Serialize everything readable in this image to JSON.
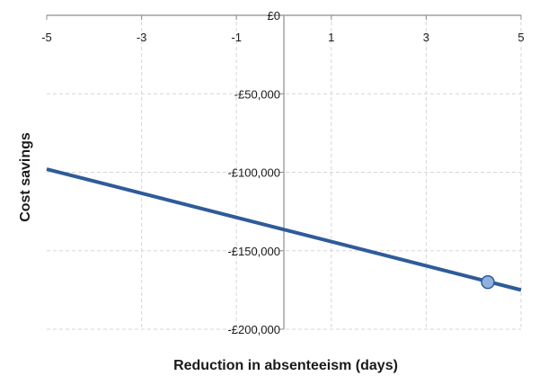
{
  "chart_data": {
    "type": "line",
    "xlabel": "Reduction in absenteeism (days)",
    "ylabel": "Cost savings",
    "xlim": [
      -5,
      5
    ],
    "ylim": [
      -200000,
      0
    ],
    "x_ticks": [
      -5,
      -3,
      -1,
      1,
      3,
      5
    ],
    "x_tick_labels": [
      "-5",
      "-3",
      "-1",
      "1",
      "3",
      "5"
    ],
    "y_ticks": [
      0,
      -50000,
      -100000,
      -150000,
      -200000
    ],
    "y_tick_labels": [
      "£0",
      "-£50,000",
      "-£100,000",
      "-£150,000",
      "-£200,000"
    ],
    "grid": true,
    "series": [
      {
        "x": [
          -5,
          5
        ],
        "y": [
          -98000,
          -175000
        ],
        "color": "#2e5b9a"
      }
    ],
    "highlight_point": {
      "x": 4.3,
      "y": -170000,
      "color": "#8fb1dd"
    }
  }
}
